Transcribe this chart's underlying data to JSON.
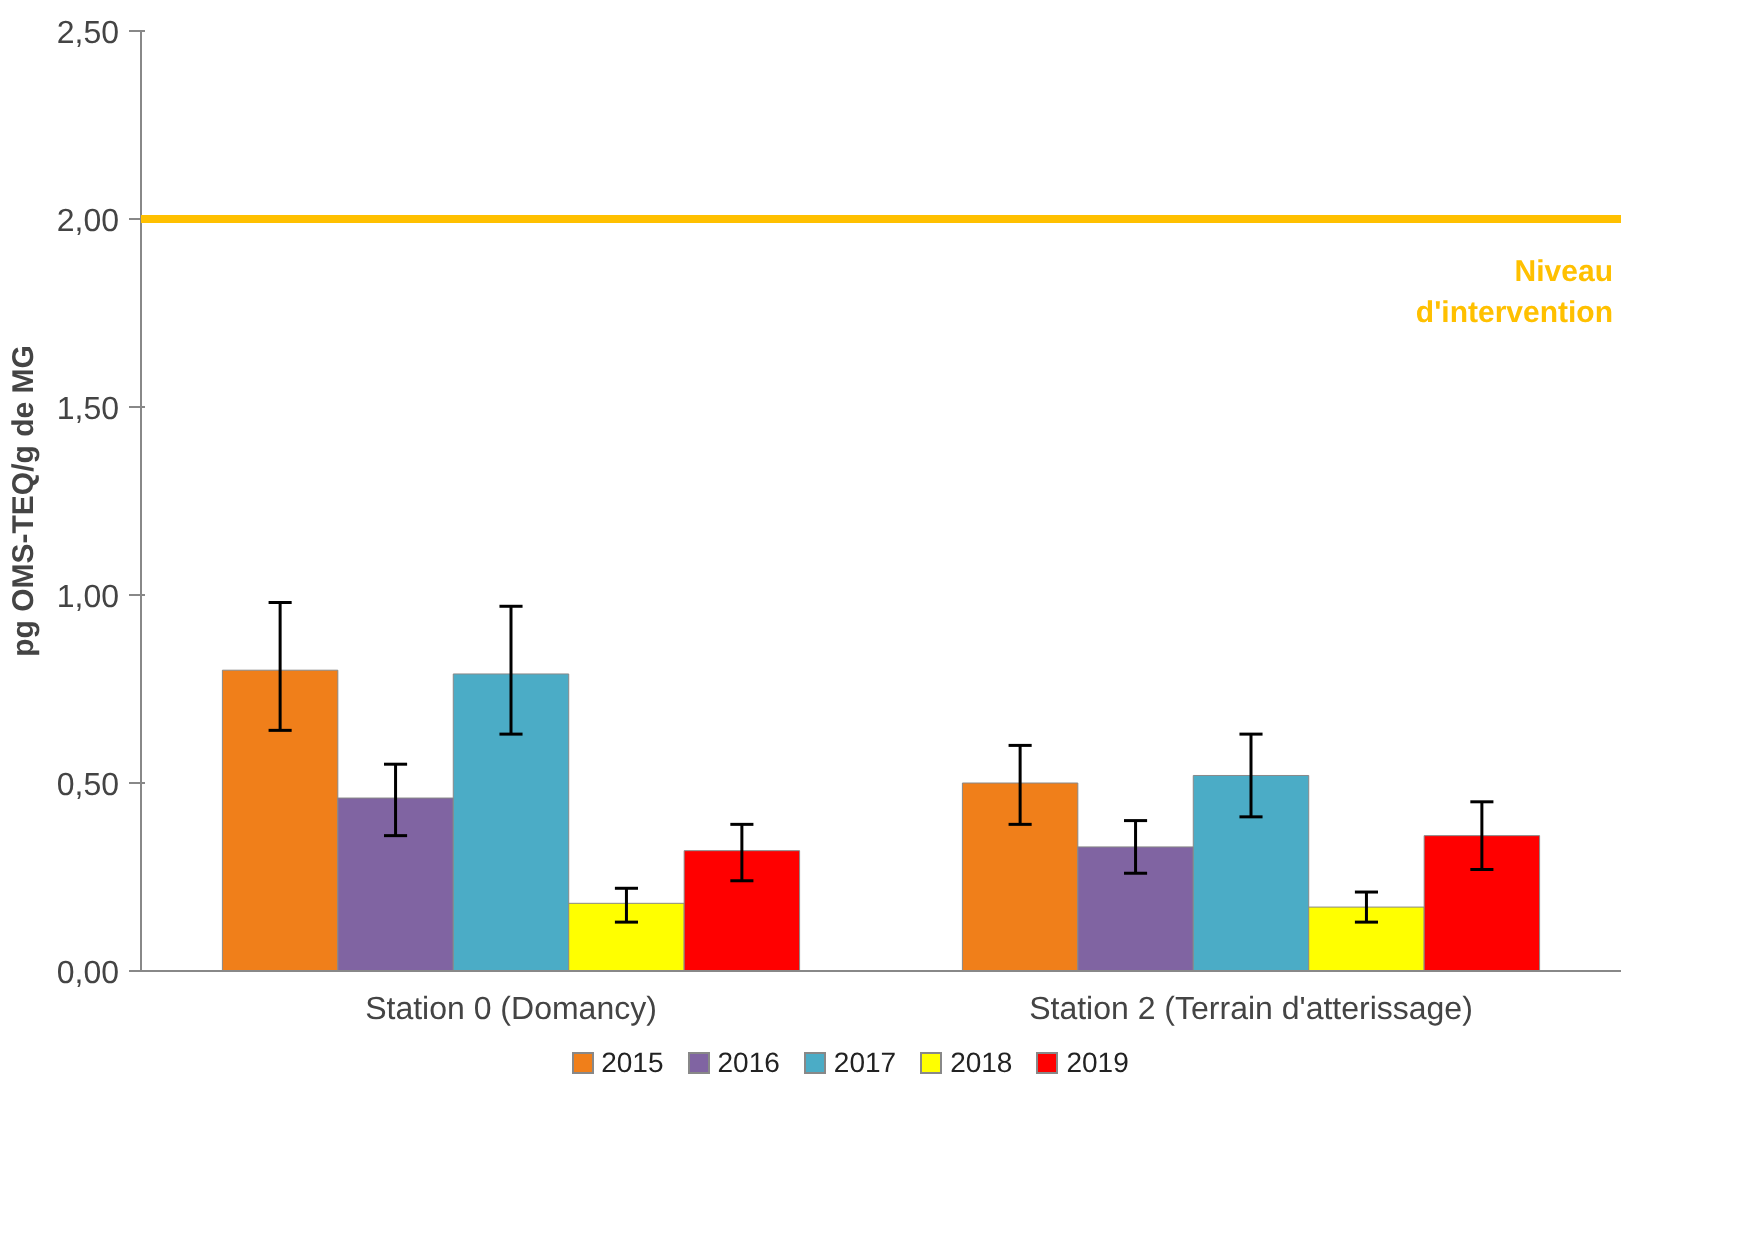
{
  "chart_data": {
    "type": "bar",
    "ylabel": "pg OMS-TEQ/g de MG",
    "categories": [
      "Station 0 (Domancy)",
      "Station 2 (Terrain d'atterissage)"
    ],
    "series": [
      {
        "name": "2015",
        "color": "#f07f1a",
        "values": [
          0.8,
          0.5
        ],
        "errors": [
          [
            0.64,
            0.98
          ],
          [
            0.39,
            0.6
          ]
        ]
      },
      {
        "name": "2016",
        "color": "#8064a2",
        "values": [
          0.46,
          0.33
        ],
        "errors": [
          [
            0.36,
            0.55
          ],
          [
            0.26,
            0.4
          ]
        ]
      },
      {
        "name": "2017",
        "color": "#4bacc6",
        "values": [
          0.79,
          0.52
        ],
        "errors": [
          [
            0.63,
            0.97
          ],
          [
            0.41,
            0.63
          ]
        ]
      },
      {
        "name": "2018",
        "color": "#ffff00",
        "values": [
          0.18,
          0.17
        ],
        "errors": [
          [
            0.13,
            0.22
          ],
          [
            0.13,
            0.21
          ]
        ]
      },
      {
        "name": "2019",
        "color": "#ff0000",
        "values": [
          0.32,
          0.36
        ],
        "errors": [
          [
            0.24,
            0.39
          ],
          [
            0.27,
            0.45
          ]
        ]
      }
    ],
    "ylim": [
      0,
      2.5
    ],
    "yticks": [
      {
        "value": 0,
        "label": "0,00"
      },
      {
        "value": 0.5,
        "label": "0,50"
      },
      {
        "value": 1,
        "label": "1,00"
      },
      {
        "value": 1.5,
        "label": "1,50"
      },
      {
        "value": 2,
        "label": "2,00"
      },
      {
        "value": 2.5,
        "label": "2,50"
      }
    ],
    "ref_lines": [
      {
        "axis": "y",
        "value": 2,
        "label": "Niveau\nd'intervention",
        "color": "#ffc000"
      }
    ],
    "grid": false,
    "legend": "bottom"
  }
}
